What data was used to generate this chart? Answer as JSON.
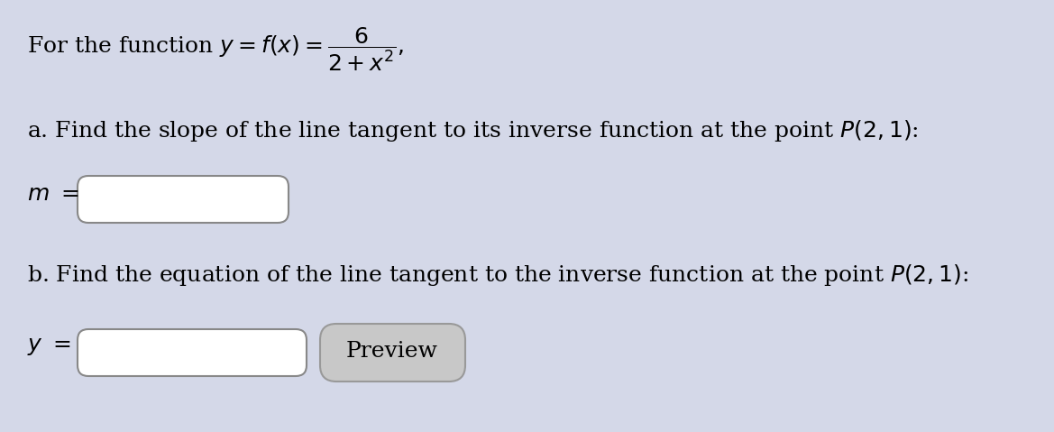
{
  "background_color": "#D4D8E8",
  "font_size_main": 18,
  "input_box_color": "#FFFFFF",
  "input_box_edge_color": "#888888",
  "preview_button_color_top": "#E8E8E8",
  "preview_button_color": "#C8C8C8",
  "preview_button_edge_color": "#999999",
  "preview_text": "Preview"
}
